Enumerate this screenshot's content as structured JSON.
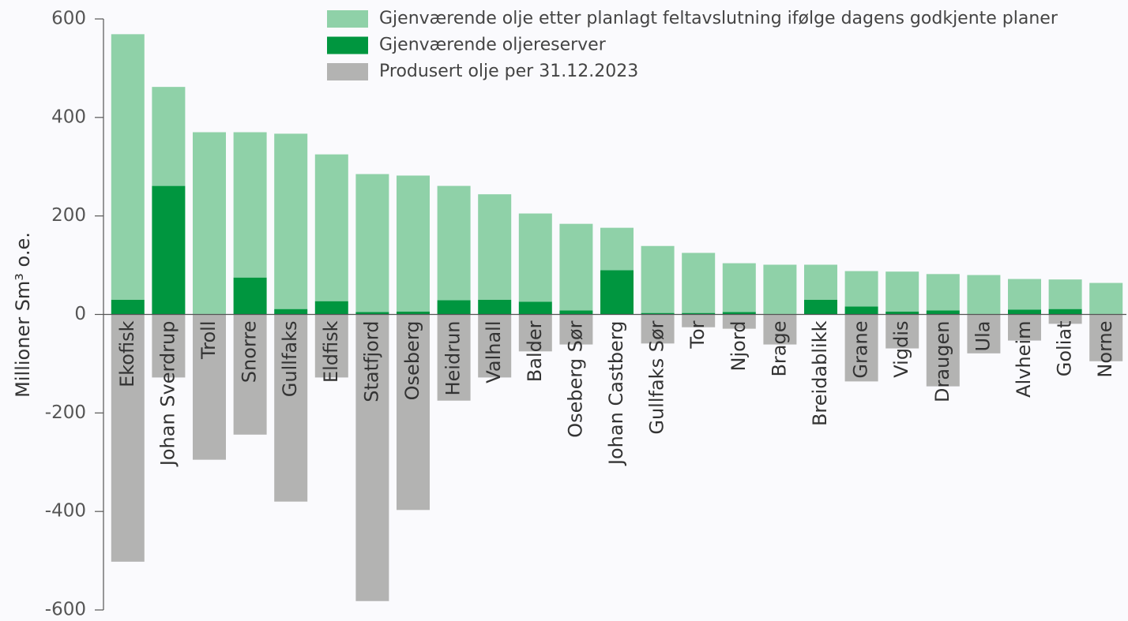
{
  "chart_data": {
    "type": "bar",
    "stacked": true,
    "ylabel": "Millioner Sm³ o.e.",
    "categories": [
      "Ekofisk",
      "Johan Sverdrup",
      "Troll",
      "Snorre",
      "Gullfaks",
      "Eldfisk",
      "Statfjord",
      "Oseberg",
      "Heidrun",
      "Valhall",
      "Balder",
      "Oseberg Sør",
      "Johan Castberg",
      "Gullfaks Sør",
      "Tor",
      "Njord",
      "Brage",
      "Breidablikk",
      "Grane",
      "Vigdis",
      "Draugen",
      "Ula",
      "Alvheim",
      "Goliat",
      "Norne"
    ],
    "series": [
      {
        "name": "Gjenværende olje etter planlagt feltavslutning ifølge dagens godkjente planer",
        "color": "#8fd1a8",
        "values": [
          539,
          201,
          369,
          295,
          356,
          298,
          280,
          276,
          232,
          214,
          179,
          176,
          86,
          136,
          122,
          99,
          101,
          71,
          72,
          81,
          74,
          80,
          62,
          60,
          64
        ]
      },
      {
        "name": "Gjenværende oljereserver",
        "color": "#00963f",
        "values": [
          30,
          261,
          1,
          75,
          11,
          27,
          5,
          6,
          29,
          30,
          26,
          8,
          90,
          3,
          3,
          5,
          0,
          30,
          16,
          6,
          8,
          0,
          10,
          11,
          0
        ]
      },
      {
        "name": "Produsert olje per 31.12.2023",
        "color": "#b3b3b2",
        "values": [
          -502,
          -128,
          -295,
          -244,
          -380,
          -128,
          -582,
          -397,
          -175,
          -128,
          -75,
          -61,
          0,
          -59,
          -26,
          -29,
          -61,
          0,
          -136,
          -69,
          -146,
          -79,
          -53,
          -19,
          -95
        ]
      }
    ],
    "ylim": [
      -600,
      600
    ],
    "yticks": [
      -600,
      -400,
      -200,
      0,
      200,
      400,
      600
    ]
  }
}
